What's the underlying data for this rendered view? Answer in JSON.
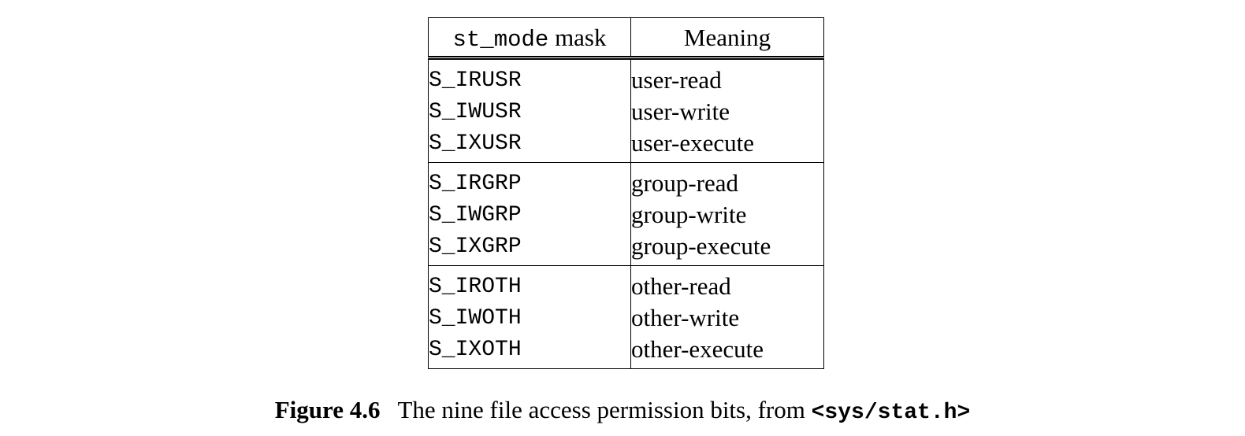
{
  "table": {
    "header": {
      "mask_code": "st_mode",
      "mask_word": "mask",
      "meaning": "Meaning"
    },
    "groups": [
      {
        "rows": [
          {
            "mask": "S_IRUSR",
            "meaning": "user-read"
          },
          {
            "mask": "S_IWUSR",
            "meaning": "user-write"
          },
          {
            "mask": "S_IXUSR",
            "meaning": "user-execute"
          }
        ]
      },
      {
        "rows": [
          {
            "mask": "S_IRGRP",
            "meaning": "group-read"
          },
          {
            "mask": "S_IWGRP",
            "meaning": "group-write"
          },
          {
            "mask": "S_IXGRP",
            "meaning": "group-execute"
          }
        ]
      },
      {
        "rows": [
          {
            "mask": "S_IROTH",
            "meaning": "other-read"
          },
          {
            "mask": "S_IWOTH",
            "meaning": "other-write"
          },
          {
            "mask": "S_IXOTH",
            "meaning": "other-execute"
          }
        ]
      }
    ]
  },
  "caption": {
    "label": "Figure 4.6",
    "text": "The nine file access permission bits, from ",
    "header_file": "<sys/stat.h>"
  }
}
